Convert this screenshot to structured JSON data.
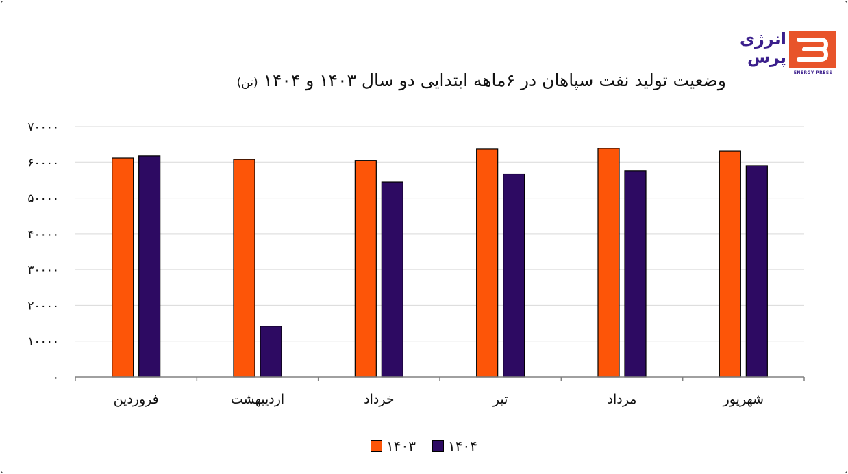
{
  "title": "وضعیت تولید نفت سپاهان در ۶ماهه ابتدایی دو سال ۱۴۰۳ و ۱۴۰۴",
  "title_unit": "(تن)",
  "logo": {
    "name_line1": "انرژی",
    "name_line2": "پرس",
    "tagline": "ENERGY PRESS"
  },
  "colors": {
    "series_1403": "#fd5508",
    "series_1404": "#2d0a62",
    "grid": "#d9d9d9",
    "axis": "#808080",
    "logo_mark": "#e8542a",
    "logo_text": "#3b1f8c"
  },
  "chart_data": {
    "type": "bar",
    "categories": [
      "فروردین",
      "اردیبهشت",
      "خرداد",
      "تیر",
      "مرداد",
      "شهریور"
    ],
    "series": [
      {
        "name": "۱۴۰۳",
        "values": [
          61200,
          60800,
          60500,
          63700,
          63900,
          63100
        ]
      },
      {
        "name": "۱۴۰۴",
        "values": [
          61800,
          14200,
          54500,
          56700,
          57600,
          59100
        ]
      }
    ],
    "yticks": [
      "۰",
      "۱۰۰۰۰",
      "۲۰۰۰۰",
      "۳۰۰۰۰",
      "۴۰۰۰۰",
      "۵۰۰۰۰",
      "۶۰۰۰۰",
      "۷۰۰۰۰"
    ],
    "ylim": [
      0,
      70000
    ],
    "grid": true,
    "legend_position": "bottom"
  }
}
